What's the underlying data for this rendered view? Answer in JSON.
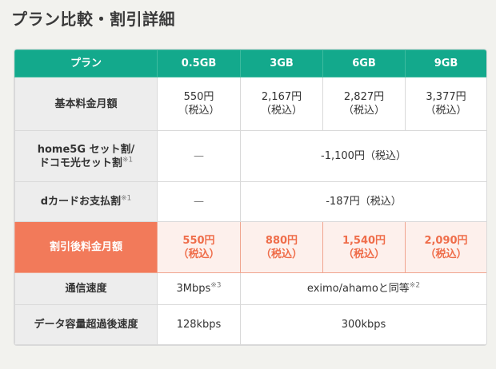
{
  "title": "プラン比較・割引詳細",
  "header": [
    "プラン",
    "0.5GB",
    "3GB",
    "6GB",
    "9GB"
  ],
  "tax_label": "（税込）",
  "rows": {
    "base": {
      "label": "基本料金月額",
      "values": [
        "550円",
        "2,167円",
        "2,827円",
        "3,377円"
      ]
    },
    "home": {
      "label_line1": "home5G セット割/",
      "label_line2": "ドコモ光セット割",
      "note": "※1",
      "first": "—",
      "span_value": "-1,100円（税込）"
    },
    "dcard": {
      "label": "dカードお支払割",
      "note": "※1",
      "first": "—",
      "span_value": "-187円（税込）"
    },
    "discounted": {
      "label": "割引後料金月額",
      "values": [
        "550円",
        "880円",
        "1,540円",
        "2,090円"
      ]
    },
    "speed": {
      "label": "通信速度",
      "first": "3Mbps",
      "first_note": "※3",
      "span_value": "eximo/ahamoと同等",
      "span_note": "※2"
    },
    "after_limit": {
      "label": "データ容量超過後速度",
      "first": "128kbps",
      "span_value": "300kbps"
    }
  }
}
